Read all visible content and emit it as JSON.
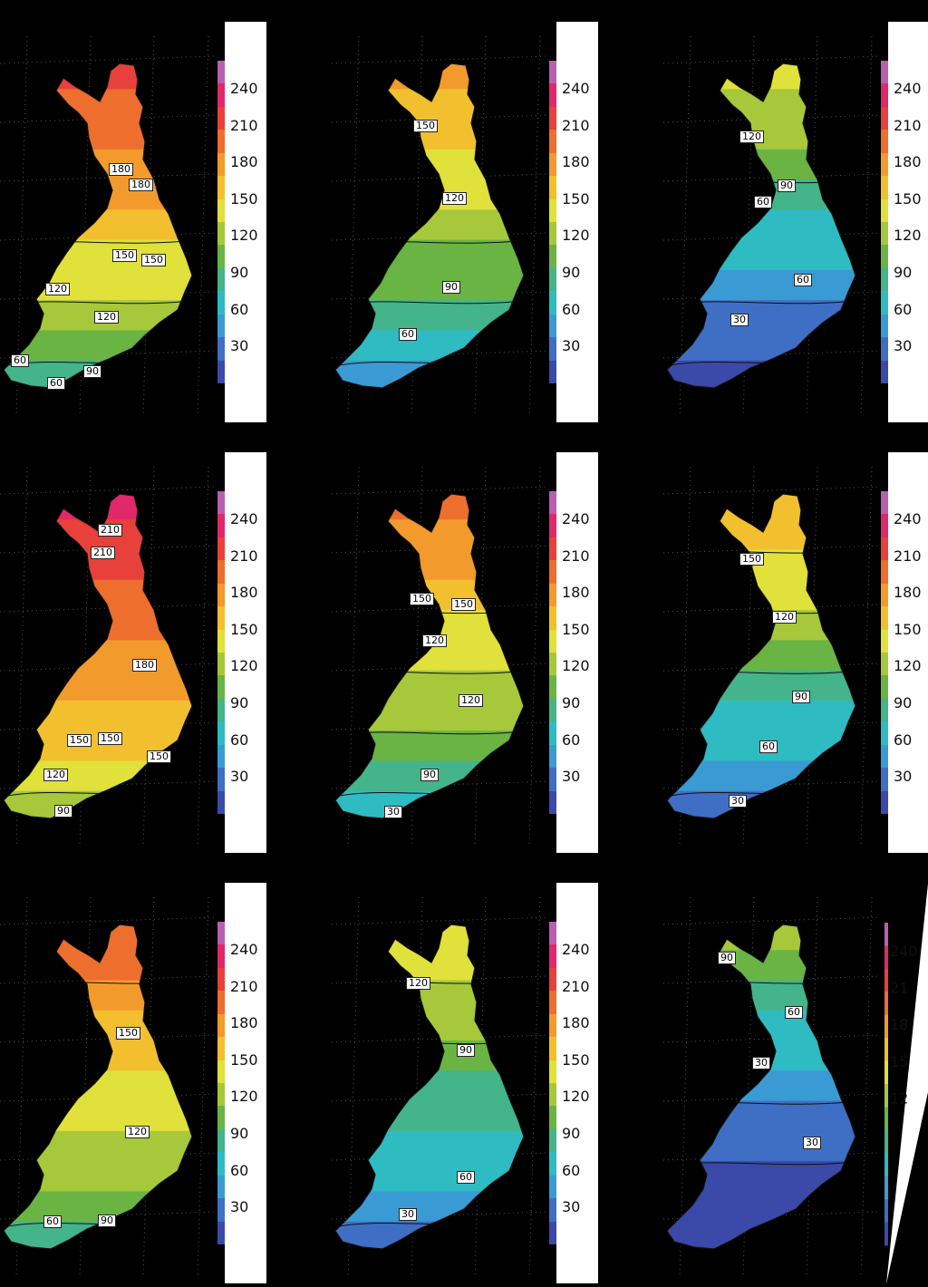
{
  "colorbar": {
    "ticks": [
      "240",
      "210",
      "180",
      "150",
      "120",
      "90",
      "60",
      "30"
    ],
    "colors": [
      "#3b4aa8",
      "#3f6fc4",
      "#3a9bd4",
      "#2fbbc2",
      "#44b48a",
      "#6ab443",
      "#a6c83a",
      "#e0e13a",
      "#f2c02f",
      "#f39a2c",
      "#ee6e2d",
      "#e8403a",
      "#e0286a",
      "#b85fb0"
    ]
  },
  "panels": [
    {
      "id": "r1c1",
      "scheme": "high",
      "labels": [
        "180",
        "180",
        "150",
        "150",
        "120",
        "120",
        "60",
        "90",
        "60"
      ]
    },
    {
      "id": "r1c2",
      "scheme": "mid",
      "labels": [
        "150",
        "120",
        "90",
        "60"
      ]
    },
    {
      "id": "r1c3",
      "scheme": "low",
      "labels": [
        "120",
        "90",
        "60",
        "60",
        "30"
      ]
    },
    {
      "id": "r2c1",
      "scheme": "veryhigh",
      "labels": [
        "210",
        "210",
        "180",
        "150",
        "150",
        "150",
        "120",
        "90"
      ]
    },
    {
      "id": "r2c2",
      "scheme": "midhigh",
      "labels": [
        "150",
        "150",
        "120",
        "120",
        "90",
        "30"
      ]
    },
    {
      "id": "r2c3",
      "scheme": "midlow",
      "labels": [
        "150",
        "120",
        "90",
        "60",
        "30"
      ]
    },
    {
      "id": "r3c1",
      "scheme": "highmid",
      "labels": [
        "150",
        "120",
        "90",
        "60"
      ]
    },
    {
      "id": "r3c2",
      "scheme": "lowmid",
      "labels": [
        "120",
        "90",
        "60",
        "30"
      ]
    },
    {
      "id": "r3c3",
      "scheme": "verylow",
      "labels": [
        "90",
        "60",
        "30",
        "30"
      ]
    }
  ],
  "partial_ticks": [
    "240",
    "21",
    "18",
    "15",
    "12"
  ]
}
